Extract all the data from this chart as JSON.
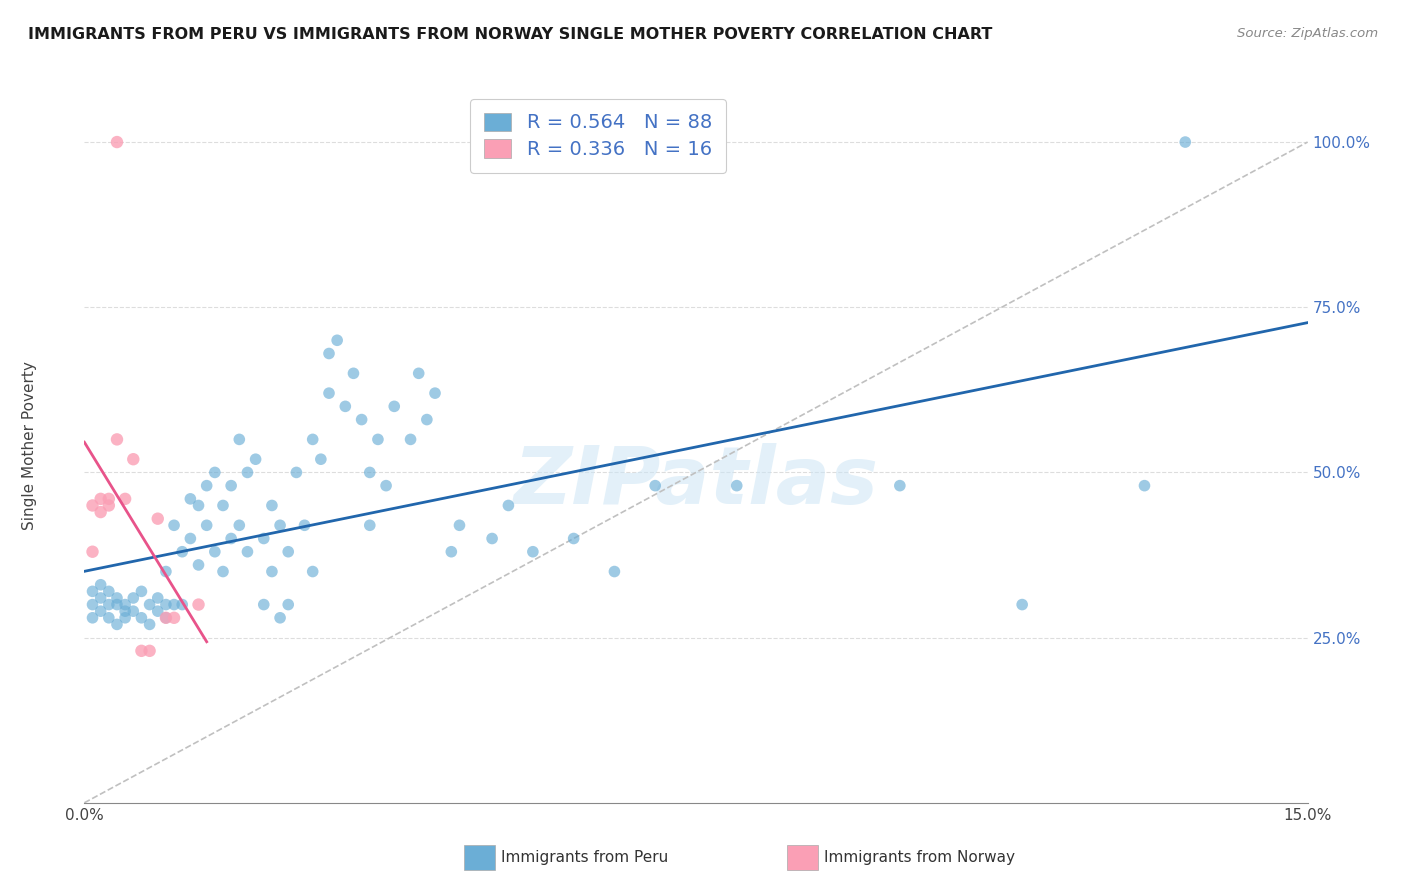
{
  "title": "IMMIGRANTS FROM PERU VS IMMIGRANTS FROM NORWAY SINGLE MOTHER POVERTY CORRELATION CHART",
  "source": "Source: ZipAtlas.com",
  "ylabel": "Single Mother Poverty",
  "legend_entry1": "R = 0.564   N = 88",
  "legend_entry2": "R = 0.336   N = 16",
  "legend_label1": "Immigrants from Peru",
  "legend_label2": "Immigrants from Norway",
  "peru_color": "#6baed6",
  "norway_color": "#fa9fb5",
  "peru_line_color": "#2166ac",
  "norway_line_color": "#e8538a",
  "diag_line_color": "#c0c0c0",
  "background_color": "#ffffff",
  "grid_color": "#dddddd",
  "watermark": "ZIPatlas",
  "peru_scatter": [
    [
      0.001,
      0.3
    ],
    [
      0.001,
      0.32
    ],
    [
      0.001,
      0.28
    ],
    [
      0.002,
      0.31
    ],
    [
      0.002,
      0.29
    ],
    [
      0.002,
      0.33
    ],
    [
      0.003,
      0.3
    ],
    [
      0.003,
      0.28
    ],
    [
      0.003,
      0.32
    ],
    [
      0.004,
      0.27
    ],
    [
      0.004,
      0.31
    ],
    [
      0.004,
      0.3
    ],
    [
      0.005,
      0.29
    ],
    [
      0.005,
      0.28
    ],
    [
      0.005,
      0.3
    ],
    [
      0.006,
      0.31
    ],
    [
      0.006,
      0.29
    ],
    [
      0.007,
      0.32
    ],
    [
      0.007,
      0.28
    ],
    [
      0.008,
      0.3
    ],
    [
      0.008,
      0.27
    ],
    [
      0.009,
      0.31
    ],
    [
      0.009,
      0.29
    ],
    [
      0.01,
      0.3
    ],
    [
      0.01,
      0.35
    ],
    [
      0.01,
      0.28
    ],
    [
      0.011,
      0.3
    ],
    [
      0.011,
      0.42
    ],
    [
      0.012,
      0.38
    ],
    [
      0.012,
      0.3
    ],
    [
      0.013,
      0.46
    ],
    [
      0.013,
      0.4
    ],
    [
      0.014,
      0.45
    ],
    [
      0.014,
      0.36
    ],
    [
      0.015,
      0.48
    ],
    [
      0.015,
      0.42
    ],
    [
      0.016,
      0.5
    ],
    [
      0.016,
      0.38
    ],
    [
      0.017,
      0.45
    ],
    [
      0.017,
      0.35
    ],
    [
      0.018,
      0.48
    ],
    [
      0.018,
      0.4
    ],
    [
      0.019,
      0.55
    ],
    [
      0.019,
      0.42
    ],
    [
      0.02,
      0.5
    ],
    [
      0.02,
      0.38
    ],
    [
      0.021,
      0.52
    ],
    [
      0.022,
      0.4
    ],
    [
      0.022,
      0.3
    ],
    [
      0.023,
      0.45
    ],
    [
      0.023,
      0.35
    ],
    [
      0.024,
      0.42
    ],
    [
      0.024,
      0.28
    ],
    [
      0.025,
      0.38
    ],
    [
      0.025,
      0.3
    ],
    [
      0.026,
      0.5
    ],
    [
      0.027,
      0.42
    ],
    [
      0.028,
      0.55
    ],
    [
      0.028,
      0.35
    ],
    [
      0.029,
      0.52
    ],
    [
      0.03,
      0.68
    ],
    [
      0.03,
      0.62
    ],
    [
      0.031,
      0.7
    ],
    [
      0.032,
      0.6
    ],
    [
      0.033,
      0.65
    ],
    [
      0.034,
      0.58
    ],
    [
      0.035,
      0.5
    ],
    [
      0.035,
      0.42
    ],
    [
      0.036,
      0.55
    ],
    [
      0.037,
      0.48
    ],
    [
      0.038,
      0.6
    ],
    [
      0.04,
      0.55
    ],
    [
      0.041,
      0.65
    ],
    [
      0.042,
      0.58
    ],
    [
      0.043,
      0.62
    ],
    [
      0.045,
      0.38
    ],
    [
      0.046,
      0.42
    ],
    [
      0.05,
      0.4
    ],
    [
      0.052,
      0.45
    ],
    [
      0.055,
      0.38
    ],
    [
      0.06,
      0.4
    ],
    [
      0.065,
      0.35
    ],
    [
      0.07,
      0.48
    ],
    [
      0.08,
      0.48
    ],
    [
      0.1,
      0.48
    ],
    [
      0.115,
      0.3
    ],
    [
      0.13,
      0.48
    ],
    [
      0.135,
      1.0
    ]
  ],
  "norway_scatter": [
    [
      0.001,
      0.38
    ],
    [
      0.001,
      0.45
    ],
    [
      0.002,
      0.44
    ],
    [
      0.002,
      0.46
    ],
    [
      0.003,
      0.45
    ],
    [
      0.003,
      0.46
    ],
    [
      0.004,
      0.55
    ],
    [
      0.004,
      1.0
    ],
    [
      0.005,
      0.46
    ],
    [
      0.006,
      0.52
    ],
    [
      0.007,
      0.23
    ],
    [
      0.008,
      0.23
    ],
    [
      0.009,
      0.43
    ],
    [
      0.01,
      0.28
    ],
    [
      0.011,
      0.28
    ],
    [
      0.014,
      0.3
    ]
  ],
  "xlim": [
    0.0,
    0.15
  ],
  "ylim": [
    0.0,
    1.08
  ],
  "xtick_positions": [
    0.0,
    0.025,
    0.05,
    0.075,
    0.1,
    0.125,
    0.15
  ],
  "xtick_labels": [
    "0.0%",
    "",
    "",
    "",
    "",
    "",
    "15.0%"
  ],
  "ytick_positions": [
    0.25,
    0.5,
    0.75,
    1.0
  ],
  "ytick_labels": [
    "25.0%",
    "50.0%",
    "75.0%",
    "100.0%"
  ]
}
